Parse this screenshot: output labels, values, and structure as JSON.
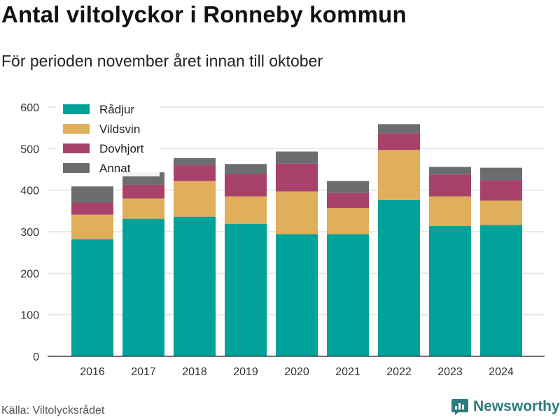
{
  "title": "Antal viltolyckor i Ronneby kommun",
  "subtitle": "För perioden november året innan till oktober",
  "source": "Källa: Viltolycksrådet",
  "brand": "Newsworthy",
  "chart_data": {
    "type": "bar",
    "stacked": true,
    "categories": [
      "2016",
      "2017",
      "2018",
      "2019",
      "2020",
      "2021",
      "2022",
      "2023",
      "2024"
    ],
    "series": [
      {
        "name": "Rådjur",
        "color": "#00a29a",
        "values": [
          282,
          331,
          336,
          319,
          294,
          294,
          376,
          314,
          316
        ]
      },
      {
        "name": "Vildsvin",
        "color": "#dfaf5c",
        "values": [
          59,
          49,
          86,
          66,
          103,
          63,
          121,
          71,
          59
        ]
      },
      {
        "name": "Dovhjort",
        "color": "#a8426b",
        "values": [
          29,
          33,
          38,
          54,
          67,
          36,
          40,
          53,
          49
        ]
      },
      {
        "name": "Annat",
        "color": "#6c6d6f",
        "values": [
          39,
          30,
          17,
          24,
          29,
          29,
          22,
          18,
          30
        ]
      }
    ],
    "ylim": [
      0,
      600
    ],
    "yticks": [
      0,
      100,
      200,
      300,
      400,
      500,
      600
    ],
    "grid": true,
    "legend": "top-left",
    "xlabel": "",
    "ylabel": ""
  }
}
